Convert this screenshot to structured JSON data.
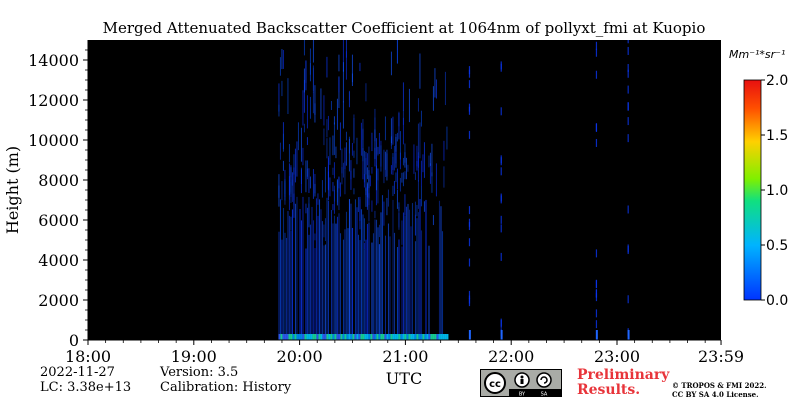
{
  "chart_data": {
    "type": "heatmap",
    "title": "Merged Attenuated Backscatter Coefficient at 1064nm of pollyxt_fmi at Kuopio",
    "xlabel": "UTC",
    "ylabel": "Height (m)",
    "x_ticks": [
      "18:00",
      "19:00",
      "20:00",
      "21:00",
      "22:00",
      "23:00",
      "23:59"
    ],
    "x_range_hours": [
      18.0,
      23.983
    ],
    "y_ticks": [
      0,
      2000,
      4000,
      6000,
      8000,
      10000,
      12000,
      14000
    ],
    "ylim": [
      0,
      15000
    ],
    "colorbar": {
      "unit": "Mm⁻¹*sr⁻¹",
      "ticks": [
        "0.0",
        "0.5",
        "1.0",
        "1.5",
        "2.0"
      ],
      "range": [
        0,
        2.0
      ],
      "colormap": "jet"
    },
    "data_extent": {
      "main_signal_start_hour": 19.8,
      "main_signal_end_hour": 21.4,
      "signal_top_m": 15000,
      "sparse_signal_hours": [
        21.6,
        21.9,
        22.8,
        23.1
      ],
      "near_surface_max_m": 300
    },
    "background_color": "#000000"
  },
  "footer": {
    "date": "2022-11-27",
    "lc": "LC: 3.38e+13",
    "version": "Version: 3.5",
    "calibration": "Calibration: History",
    "preliminary_line1": "Preliminary",
    "preliminary_line2": "Results.",
    "copyright_line1": "© TROPOS & FMI 2022.",
    "copyright_line2": "CC BY SA 4.0 License.",
    "license_badge": [
      "cc-icon",
      "by-icon",
      "sa-icon"
    ]
  }
}
